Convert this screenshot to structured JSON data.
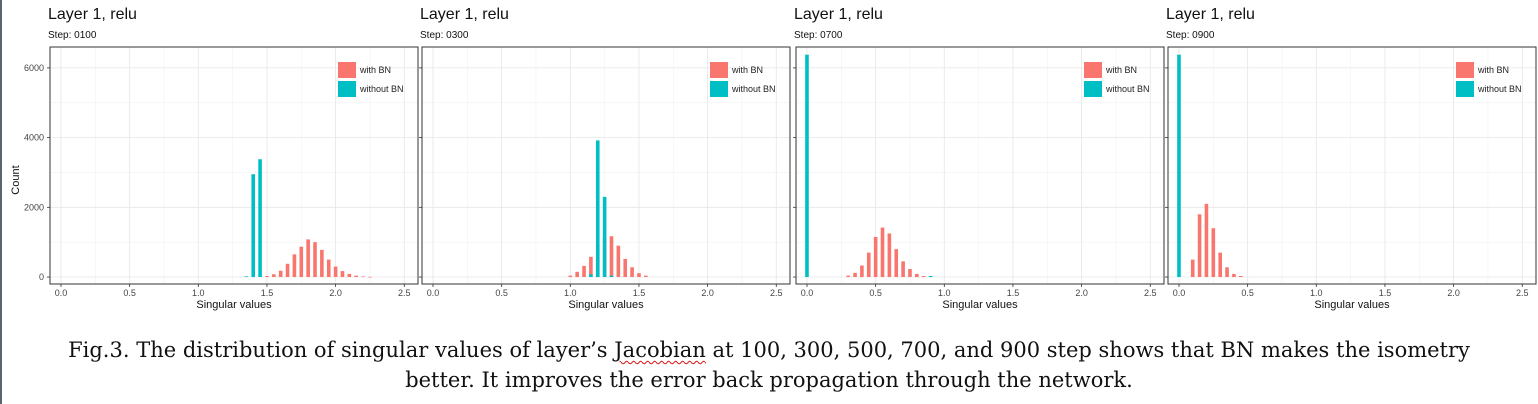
{
  "caption": {
    "line1_pre": "Fig.3. The distribution of singular values of layer’s ",
    "line1_word": "Jacobian",
    "line1_post": " at 100, 300, 500, 700, and 900 step shows that BN makes the isometry",
    "line2": "better. It improves the error back propagation through the network."
  },
  "shared": {
    "ylabel": "Count",
    "xlabel": "Singular values",
    "x_ticks": [
      "0.0",
      "0.5",
      "1.0",
      "1.5",
      "2.0",
      "2.5"
    ],
    "y_ticks": [
      "0",
      "2000",
      "4000",
      "6000"
    ],
    "legend": [
      "with BN",
      "without BN"
    ],
    "colors": {
      "with_bn": "#f8766d",
      "without_bn": "#00bfc4"
    }
  },
  "chart_data": [
    {
      "type": "bar",
      "title": "Layer 1, relu",
      "subtitle": "Step: 0100",
      "xlabel": "Singular values",
      "ylabel": "Count",
      "xlim": [
        -0.08,
        2.6
      ],
      "ylim": [
        -200,
        6600
      ],
      "legend_position": "top-right",
      "grid": true,
      "series": [
        {
          "name": "with BN",
          "x": [
            1.5,
            1.55,
            1.6,
            1.65,
            1.7,
            1.75,
            1.8,
            1.85,
            1.9,
            1.95,
            2.0,
            2.05,
            2.1,
            2.15,
            2.2,
            2.25
          ],
          "values": [
            30,
            80,
            180,
            380,
            650,
            870,
            1080,
            1000,
            780,
            500,
            300,
            170,
            90,
            40,
            15,
            5
          ]
        },
        {
          "name": "without BN",
          "x": [
            1.35,
            1.4,
            1.45
          ],
          "values": [
            20,
            2950,
            3380
          ]
        }
      ]
    },
    {
      "type": "bar",
      "title": "Layer 1, relu",
      "subtitle": "Step: 0300",
      "xlabel": "Singular values",
      "ylabel": "",
      "xlim": [
        -0.08,
        2.6
      ],
      "ylim": [
        -200,
        6600
      ],
      "legend_position": "top-right",
      "grid": true,
      "series": [
        {
          "name": "with BN",
          "x": [
            1.0,
            1.05,
            1.1,
            1.15,
            1.2,
            1.25,
            1.3,
            1.35,
            1.4,
            1.45,
            1.5,
            1.55
          ],
          "values": [
            40,
            150,
            320,
            580,
            950,
            1140,
            1170,
            900,
            520,
            280,
            110,
            40
          ]
        },
        {
          "name": "without BN",
          "x": [
            1.15,
            1.2,
            1.25,
            1.3
          ],
          "values": [
            80,
            3920,
            2300,
            40
          ]
        }
      ]
    },
    {
      "type": "bar",
      "title": "Layer 1, relu",
      "subtitle": "Step: 0700",
      "xlabel": "Singular values",
      "ylabel": "",
      "xlim": [
        -0.08,
        2.6
      ],
      "ylim": [
        -200,
        6600
      ],
      "legend_position": "top-right",
      "grid": true,
      "series": [
        {
          "name": "with BN",
          "x": [
            0.3,
            0.35,
            0.4,
            0.45,
            0.5,
            0.55,
            0.6,
            0.65,
            0.7,
            0.75,
            0.8,
            0.85
          ],
          "values": [
            40,
            120,
            330,
            700,
            1150,
            1420,
            1250,
            800,
            450,
            230,
            90,
            30
          ]
        },
        {
          "name": "without BN",
          "x": [
            0.0,
            0.9
          ],
          "values": [
            6380,
            30
          ]
        }
      ]
    },
    {
      "type": "bar",
      "title": "Layer 1, relu",
      "subtitle": "Step: 0900",
      "xlabel": "Singular values",
      "ylabel": "",
      "xlim": [
        -0.08,
        2.6
      ],
      "ylim": [
        -200,
        6600
      ],
      "legend_position": "top-right",
      "grid": true,
      "series": [
        {
          "name": "with BN",
          "x": [
            0.1,
            0.15,
            0.2,
            0.25,
            0.3,
            0.35,
            0.4,
            0.45
          ],
          "values": [
            500,
            1800,
            2100,
            1400,
            700,
            280,
            90,
            30
          ]
        },
        {
          "name": "without BN",
          "x": [
            0.0
          ],
          "values": [
            6380
          ]
        }
      ]
    }
  ]
}
